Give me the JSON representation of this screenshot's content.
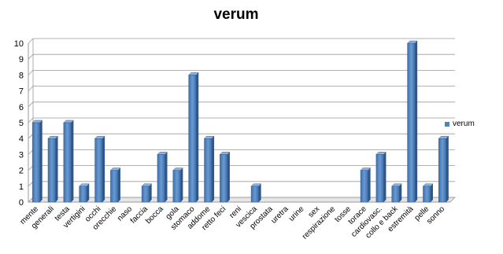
{
  "chart_data": {
    "type": "bar",
    "title": "verum",
    "xlabel": "",
    "ylabel": "",
    "ylim": [
      0,
      10
    ],
    "yticks": [
      0,
      1,
      2,
      3,
      4,
      5,
      6,
      7,
      8,
      9,
      10
    ],
    "grid": true,
    "legend_position": "right",
    "categories": [
      "mente",
      "generali",
      "testa",
      "vertigini",
      "occhi",
      "orecchie",
      "naso",
      "faccia",
      "bocca",
      "gola",
      "stomaco",
      "addome",
      "retto feci",
      "reni",
      "vescica",
      "prostata",
      "uretra",
      "urine",
      "sex",
      "respirazione",
      "tosse",
      "torace",
      "cardiovasc.",
      "collo e back",
      "estremità",
      "pelle",
      "sonno"
    ],
    "series": [
      {
        "name": "verum",
        "color": "#4F81BD",
        "values": [
          5,
          4,
          5,
          1,
          4,
          2,
          0,
          1,
          3,
          2,
          8,
          4,
          3,
          0,
          1,
          0,
          0,
          0,
          0,
          0,
          0,
          2,
          3,
          1,
          10,
          1,
          4
        ]
      }
    ]
  }
}
